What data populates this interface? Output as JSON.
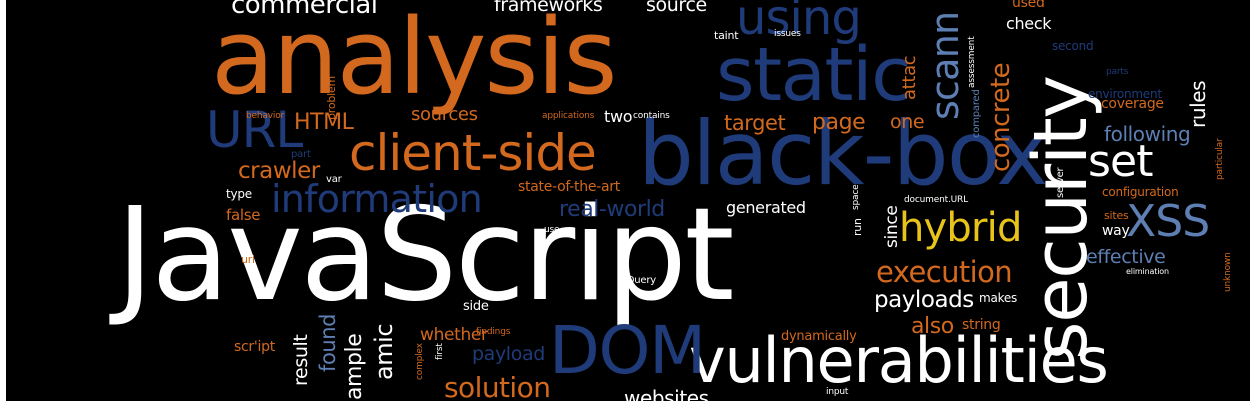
{
  "palette": {
    "white": "#ffffff",
    "orange": "#d2691e",
    "blue": "#1f3b7a",
    "lightblue": "#5d7fb3",
    "yellow": "#e8c31a",
    "gray": "#cfcfcf"
  },
  "words": [
    {
      "text": "JavaScript",
      "color": "white"
    },
    {
      "text": "analysis",
      "color": "orange"
    },
    {
      "text": "black-box",
      "color": "blue"
    },
    {
      "text": "security",
      "color": "white"
    },
    {
      "text": "static",
      "color": "blue"
    },
    {
      "text": "client-side",
      "color": "orange"
    },
    {
      "text": "vulnerabilities",
      "color": "white"
    },
    {
      "text": "DOM",
      "color": "blue"
    },
    {
      "text": "hybrid",
      "color": "yellow"
    },
    {
      "text": "XSS",
      "color": "lightblue"
    },
    {
      "text": "set",
      "color": "white"
    },
    {
      "text": "scann",
      "color": "lightblue"
    },
    {
      "text": "URL",
      "color": "blue"
    },
    {
      "text": "information",
      "color": "blue"
    },
    {
      "text": "using",
      "color": "blue"
    },
    {
      "text": "commercial",
      "color": "white"
    },
    {
      "text": "frameworks",
      "color": "white"
    },
    {
      "text": "source",
      "color": "white"
    },
    {
      "text": "execution",
      "color": "orange"
    },
    {
      "text": "payloads",
      "color": "white"
    },
    {
      "text": "concrete",
      "color": "orange"
    },
    {
      "text": "crawler",
      "color": "orange"
    },
    {
      "text": "HTML",
      "color": "orange"
    },
    {
      "text": "sources",
      "color": "orange"
    },
    {
      "text": "target",
      "color": "orange"
    },
    {
      "text": "page",
      "color": "orange"
    },
    {
      "text": "one",
      "color": "orange"
    },
    {
      "text": "two",
      "color": "white"
    },
    {
      "text": "real-world",
      "color": "blue"
    },
    {
      "text": "generated",
      "color": "white"
    },
    {
      "text": "state-of-the-art",
      "color": "orange"
    },
    {
      "text": "following",
      "color": "lightblue"
    },
    {
      "text": "coverage",
      "color": "orange"
    },
    {
      "text": "environment",
      "color": "blue"
    },
    {
      "text": "rules",
      "color": "white"
    },
    {
      "text": "check",
      "color": "white"
    },
    {
      "text": "used",
      "color": "orange"
    },
    {
      "text": "attac",
      "color": "orange"
    },
    {
      "text": "effective",
      "color": "lightblue"
    },
    {
      "text": "way",
      "color": "white"
    },
    {
      "text": "sites",
      "color": "orange"
    },
    {
      "text": "configuration",
      "color": "orange"
    },
    {
      "text": "since",
      "color": "white"
    },
    {
      "text": "also",
      "color": "orange"
    },
    {
      "text": "string",
      "color": "orange"
    },
    {
      "text": "makes",
      "color": "white"
    },
    {
      "text": "dynamically",
      "color": "orange"
    },
    {
      "text": "whether",
      "color": "orange"
    },
    {
      "text": "payload",
      "color": "blue"
    },
    {
      "text": "found",
      "color": "lightblue"
    },
    {
      "text": "result",
      "color": "white"
    },
    {
      "text": "ample",
      "color": "white"
    },
    {
      "text": "amic",
      "color": "white"
    },
    {
      "text": "solution",
      "color": "orange"
    },
    {
      "text": "websites",
      "color": "white"
    },
    {
      "text": "false",
      "color": "orange"
    },
    {
      "text": "type",
      "color": "white"
    },
    {
      "text": "url",
      "color": "orange"
    },
    {
      "text": "var",
      "color": "white"
    },
    {
      "text": "side",
      "color": "white"
    },
    {
      "text": "scr'ipt",
      "color": "orange"
    },
    {
      "text": "second",
      "color": "blue"
    },
    {
      "text": "parts",
      "color": "blue"
    },
    {
      "text": "taint",
      "color": "white"
    },
    {
      "text": "issues",
      "color": "white"
    },
    {
      "text": "problem",
      "color": "orange"
    },
    {
      "text": "behavior",
      "color": "orange"
    },
    {
      "text": "part",
      "color": "blue"
    },
    {
      "text": "applications",
      "color": "orange"
    },
    {
      "text": "contains",
      "color": "white"
    },
    {
      "text": "jQuery",
      "color": "white"
    },
    {
      "text": "use",
      "color": "white"
    },
    {
      "text": "run",
      "color": "white"
    },
    {
      "text": "document.URL",
      "color": "white"
    },
    {
      "text": "server",
      "color": "white"
    },
    {
      "text": "elimination",
      "color": "white"
    },
    {
      "text": "unknown",
      "color": "orange"
    },
    {
      "text": "particular",
      "color": "orange"
    },
    {
      "text": "compared",
      "color": "lightblue"
    },
    {
      "text": "assessment",
      "color": "white"
    },
    {
      "text": "space",
      "color": "white"
    },
    {
      "text": "findings",
      "color": "orange"
    },
    {
      "text": "first",
      "color": "white"
    },
    {
      "text": "complex",
      "color": "orange"
    },
    {
      "text": "input",
      "color": "white"
    }
  ]
}
